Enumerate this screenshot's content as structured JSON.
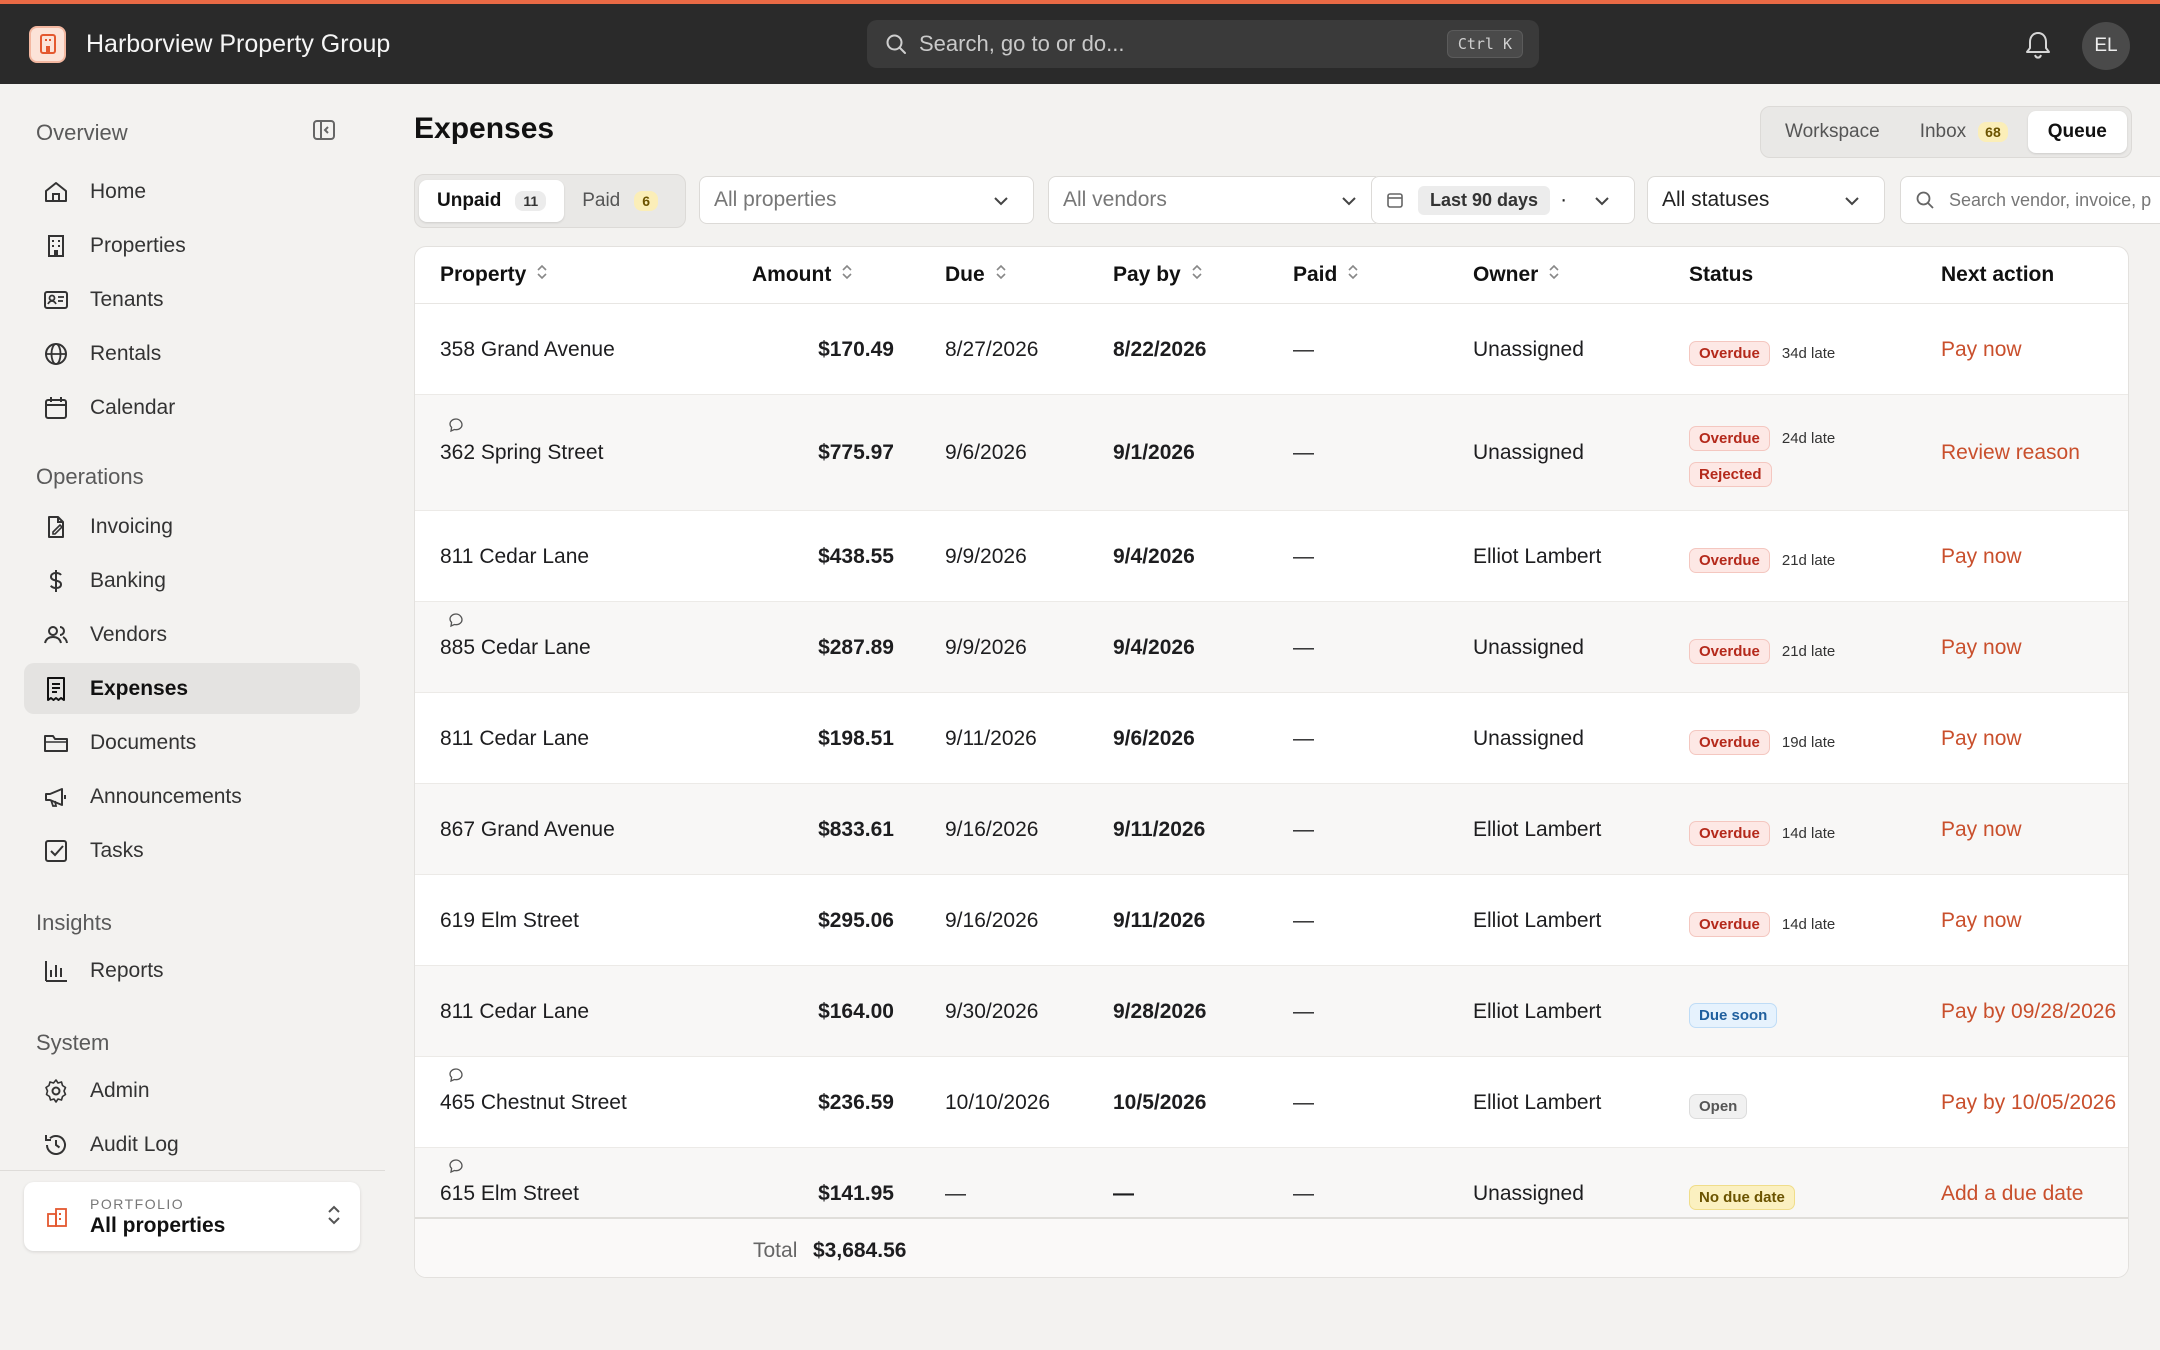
{
  "app": {
    "name": "Harborview Property Group",
    "search_placeholder": "Search, go to or do...",
    "shortcut": "Ctrl K",
    "user_initials": "EL"
  },
  "sidebar": {
    "sections": [
      {
        "title": "Overview",
        "items": [
          {
            "label": "Home",
            "icon": "home-icon"
          },
          {
            "label": "Properties",
            "icon": "building-icon"
          },
          {
            "label": "Tenants",
            "icon": "id-card-icon"
          },
          {
            "label": "Rentals",
            "icon": "globe-icon"
          },
          {
            "label": "Calendar",
            "icon": "calendar-icon"
          }
        ]
      },
      {
        "title": "Operations",
        "items": [
          {
            "label": "Invoicing",
            "icon": "file-pen-icon"
          },
          {
            "label": "Banking",
            "icon": "dollar-icon"
          },
          {
            "label": "Vendors",
            "icon": "users-icon"
          },
          {
            "label": "Expenses",
            "icon": "receipt-icon",
            "active": true
          },
          {
            "label": "Documents",
            "icon": "folder-icon"
          },
          {
            "label": "Announcements",
            "icon": "megaphone-icon"
          },
          {
            "label": "Tasks",
            "icon": "checkbox-icon"
          }
        ]
      },
      {
        "title": "Insights",
        "items": [
          {
            "label": "Reports",
            "icon": "bar-chart-icon"
          }
        ]
      },
      {
        "title": "System",
        "items": [
          {
            "label": "Admin",
            "icon": "gear-icon"
          },
          {
            "label": "Audit Log",
            "icon": "history-icon"
          }
        ]
      }
    ],
    "portfolio": {
      "label": "PORTFOLIO",
      "value": "All properties"
    }
  },
  "main": {
    "title": "Expenses",
    "views": [
      {
        "label": "Workspace"
      },
      {
        "label": "Inbox",
        "count": "68"
      },
      {
        "label": "Queue",
        "selected": true
      }
    ],
    "tabs": [
      {
        "label": "Unpaid",
        "count": "11",
        "selected": true
      },
      {
        "label": "Paid",
        "count": "6"
      }
    ],
    "filters": {
      "properties": "All properties",
      "vendors": "All vendors",
      "date_range": "Last 90 days",
      "date_suffix": "·",
      "statuses": "All statuses",
      "search_placeholder": "Search vendor, invoice, p"
    },
    "table": {
      "columns": [
        "Property",
        "Amount",
        "Due",
        "Pay by",
        "Paid",
        "Owner",
        "Status",
        "Next action"
      ],
      "rows": [
        {
          "property": "358 Grand Avenue",
          "amount": "$170.49",
          "due": "8/27/2026",
          "pay_by": "8/22/2026",
          "paid": "—",
          "owner": "Unassigned",
          "status": "Overdue",
          "late": "34d late",
          "action": "Pay now"
        },
        {
          "property": "362 Spring Street",
          "amount": "$775.97",
          "due": "9/6/2026",
          "pay_by": "9/1/2026",
          "paid": "—",
          "owner": "Unassigned",
          "status": "Overdue",
          "late": "24d late",
          "status2": "Rejected",
          "action": "Review reason",
          "comment": true
        },
        {
          "property": "811 Cedar Lane",
          "amount": "$438.55",
          "due": "9/9/2026",
          "pay_by": "9/4/2026",
          "paid": "—",
          "owner": "Elliot Lambert",
          "status": "Overdue",
          "late": "21d late",
          "action": "Pay now"
        },
        {
          "property": "885 Cedar Lane",
          "amount": "$287.89",
          "due": "9/9/2026",
          "pay_by": "9/4/2026",
          "paid": "—",
          "owner": "Unassigned",
          "status": "Overdue",
          "late": "21d late",
          "action": "Pay now",
          "comment": true
        },
        {
          "property": "811 Cedar Lane",
          "amount": "$198.51",
          "due": "9/11/2026",
          "pay_by": "9/6/2026",
          "paid": "—",
          "owner": "Unassigned",
          "status": "Overdue",
          "late": "19d late",
          "action": "Pay now"
        },
        {
          "property": "867 Grand Avenue",
          "amount": "$833.61",
          "due": "9/16/2026",
          "pay_by": "9/11/2026",
          "paid": "—",
          "owner": "Elliot Lambert",
          "status": "Overdue",
          "late": "14d late",
          "action": "Pay now"
        },
        {
          "property": "619 Elm Street",
          "amount": "$295.06",
          "due": "9/16/2026",
          "pay_by": "9/11/2026",
          "paid": "—",
          "owner": "Elliot Lambert",
          "status": "Overdue",
          "late": "14d late",
          "action": "Pay now"
        },
        {
          "property": "811 Cedar Lane",
          "amount": "$164.00",
          "due": "9/30/2026",
          "pay_by": "9/28/2026",
          "paid": "—",
          "owner": "Elliot Lambert",
          "status": "Due soon",
          "late": "",
          "action": "Pay by 09/28/2026"
        },
        {
          "property": "465 Chestnut Street",
          "amount": "$236.59",
          "due": "10/10/2026",
          "pay_by": "10/5/2026",
          "paid": "—",
          "owner": "Elliot Lambert",
          "status": "Open",
          "late": "",
          "action": "Pay by 10/05/2026",
          "comment": true
        },
        {
          "property": "615 Elm Street",
          "amount": "$141.95",
          "due": "—",
          "pay_by": "—",
          "paid": "—",
          "owner": "Unassigned",
          "status": "No due date",
          "late": "",
          "action": "Add a due date",
          "comment": true
        }
      ],
      "total_label": "Total",
      "total_value": "$3,684.56"
    }
  },
  "colors": {
    "accent": "#ea6a45",
    "action": "#c94f2c",
    "topbar": "#2a2a2a"
  }
}
